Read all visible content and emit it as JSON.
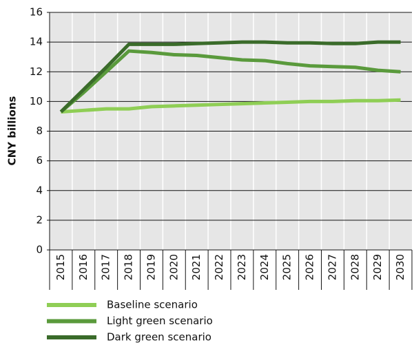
{
  "chart_data": {
    "type": "line",
    "y_label": "CNY billions",
    "categories": [
      "2015",
      "2016",
      "2017",
      "2018",
      "2019",
      "2020",
      "2021",
      "2022",
      "2023",
      "2024",
      "2025",
      "2026",
      "2027",
      "2028",
      "2029",
      "2030"
    ],
    "series": [
      {
        "name": "Baseline scenario",
        "color": "#8fce55",
        "values": [
          9.3,
          9.4,
          9.5,
          9.5,
          9.65,
          9.7,
          9.75,
          9.8,
          9.85,
          9.9,
          9.95,
          10.0,
          10.0,
          10.05,
          10.05,
          10.1
        ]
      },
      {
        "name": "Light green scenario",
        "color": "#5a9a3c",
        "values": [
          9.3,
          10.6,
          12.0,
          13.4,
          13.3,
          13.15,
          13.1,
          12.95,
          12.8,
          12.75,
          12.55,
          12.4,
          12.35,
          12.3,
          12.1,
          12.0
        ]
      },
      {
        "name": "Dark green scenario",
        "color": "#3a6b2a",
        "values": [
          9.3,
          10.8,
          12.3,
          13.85,
          13.85,
          13.85,
          13.9,
          13.95,
          14.0,
          14.0,
          13.95,
          13.95,
          13.9,
          13.9,
          14.0,
          14.0
        ]
      }
    ],
    "ylim": [
      0,
      16
    ],
    "yticks": [
      0,
      2,
      4,
      6,
      8,
      10,
      12,
      14,
      16
    ],
    "grid": true,
    "legend": "bottom"
  }
}
